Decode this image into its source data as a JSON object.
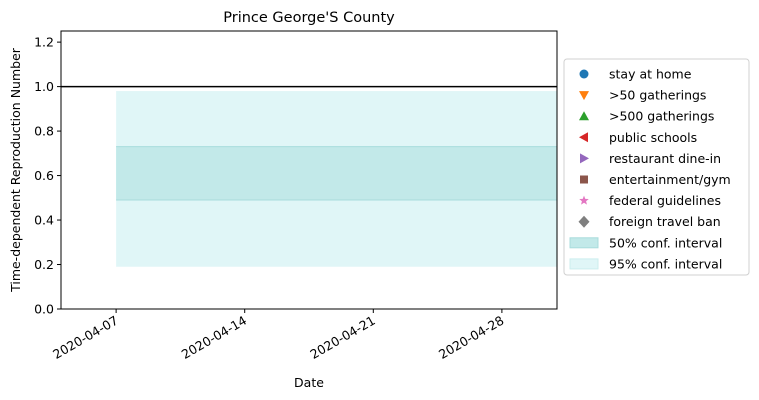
{
  "chart_data": {
    "type": "area",
    "title": "Prince George'S County",
    "xlabel": "Date",
    "ylabel": "Time-dependent Reproduction Number",
    "x_range": [
      "2020-04-07",
      "2020-05-01"
    ],
    "xlim": [
      "2020-04-04",
      "2020-05-01"
    ],
    "ylim": [
      0,
      1.25
    ],
    "x_ticks": [
      "2020-04-07",
      "2020-04-14",
      "2020-04-21",
      "2020-04-28"
    ],
    "y_ticks": [
      "0.0",
      "0.2",
      "0.4",
      "0.6",
      "0.8",
      "1.0",
      "1.2"
    ],
    "y_tick_values": [
      0,
      0.2,
      0.4,
      0.6,
      0.8,
      1.0,
      1.2
    ],
    "reference_line": 1.0,
    "interval_50": [
      0.49,
      0.73
    ],
    "interval_95": [
      0.19,
      0.98
    ],
    "legend_position": "center-right, outside",
    "legend": [
      {
        "label": "stay at home",
        "marker": "circle",
        "color": "#1f77b4"
      },
      {
        "label": ">50 gatherings",
        "marker": "triangle-down",
        "color": "#ff7f0e"
      },
      {
        "label": ">500 gatherings",
        "marker": "triangle-up",
        "color": "#2ca02c"
      },
      {
        "label": "public schools",
        "marker": "triangle-left",
        "color": "#d62728"
      },
      {
        "label": "restaurant dine-in",
        "marker": "triangle-right",
        "color": "#9467bd"
      },
      {
        "label": "entertainment/gym",
        "marker": "square",
        "color": "#8c564b"
      },
      {
        "label": "federal guidelines",
        "marker": "star",
        "color": "#e377c2"
      },
      {
        "label": "foreign travel ban",
        "marker": "diamond",
        "color": "#7f7f7f"
      },
      {
        "label": "50% conf. interval",
        "marker": "patch",
        "color": "#c2e9e9"
      },
      {
        "label": "95% conf. interval",
        "marker": "patch",
        "color": "#e0f6f7"
      }
    ]
  }
}
